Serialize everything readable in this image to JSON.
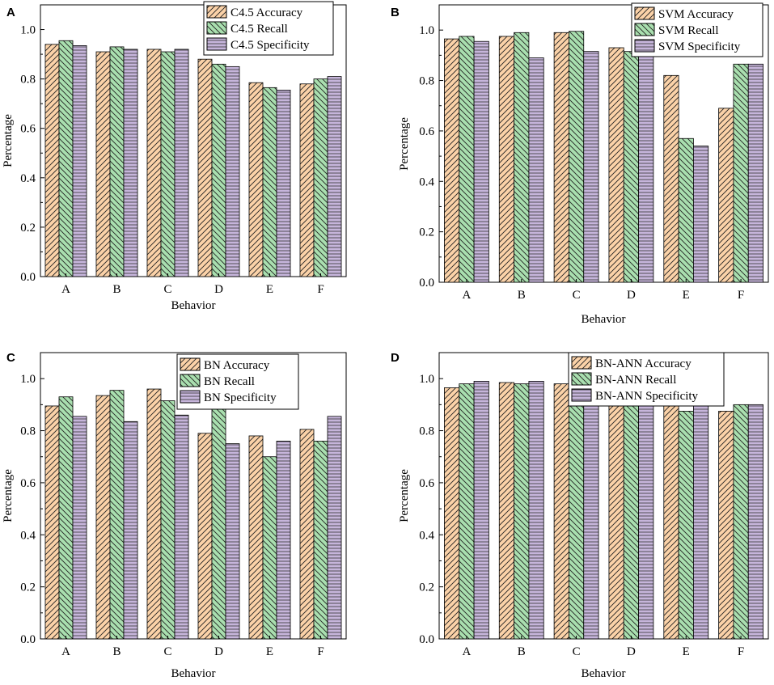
{
  "figure": {
    "background": "#ffffff"
  },
  "series_styles": [
    {
      "key": "accuracy",
      "fill": "#fbd2a8",
      "pattern": "diag-right"
    },
    {
      "key": "recall",
      "fill": "#a9dfaf",
      "pattern": "diag-left"
    },
    {
      "key": "specificity",
      "fill": "#c6b5db",
      "pattern": "horizontal"
    }
  ],
  "chart_data": [
    {
      "panel": "A",
      "type": "bar",
      "xlabel": "Behavior",
      "ylabel": "Percentage",
      "categories": [
        "A",
        "B",
        "C",
        "D",
        "E",
        "F"
      ],
      "ylim": [
        0,
        1.1
      ],
      "yticks": [
        0.0,
        0.2,
        0.4,
        0.6,
        0.8,
        1.0
      ],
      "ytick_labels": [
        "0.0",
        "0.2",
        "0.4",
        "0.6",
        "0.8",
        "1.0"
      ],
      "series": [
        {
          "name": "C4.5 Accuracy",
          "values": [
            0.94,
            0.91,
            0.92,
            0.88,
            0.785,
            0.78
          ]
        },
        {
          "name": "C4.5 Recall",
          "values": [
            0.955,
            0.93,
            0.91,
            0.86,
            0.765,
            0.8
          ]
        },
        {
          "name": "C4.5 Specificity",
          "values": [
            0.935,
            0.92,
            0.92,
            0.85,
            0.755,
            0.81
          ]
        }
      ]
    },
    {
      "panel": "B",
      "type": "bar",
      "xlabel": "Behavior",
      "ylabel": "Percentage",
      "categories": [
        "A",
        "B",
        "C",
        "D",
        "E",
        "F"
      ],
      "ylim": [
        0,
        1.1
      ],
      "yticks": [
        0.0,
        0.2,
        0.4,
        0.6,
        0.8,
        1.0
      ],
      "ytick_labels": [
        "0.0",
        "0.2",
        "0.4",
        "0.6",
        "0.8",
        "1.0"
      ],
      "series": [
        {
          "name": "SVM Accuracy",
          "values": [
            0.965,
            0.975,
            0.99,
            0.93,
            0.82,
            0.69
          ]
        },
        {
          "name": "SVM Recall",
          "values": [
            0.975,
            0.99,
            0.995,
            0.915,
            0.57,
            0.865
          ]
        },
        {
          "name": "SVM Specificity",
          "values": [
            0.955,
            0.89,
            0.915,
            0.925,
            0.54,
            0.865
          ]
        }
      ]
    },
    {
      "panel": "C",
      "type": "bar",
      "xlabel": "Behavior",
      "ylabel": "Percentage",
      "categories": [
        "A",
        "B",
        "C",
        "D",
        "E",
        "F"
      ],
      "ylim": [
        0,
        1.1
      ],
      "yticks": [
        0.0,
        0.2,
        0.4,
        0.6,
        0.8,
        1.0
      ],
      "ytick_labels": [
        "0.0",
        "0.2",
        "0.4",
        "0.6",
        "0.8",
        "1.0"
      ],
      "series": [
        {
          "name": "BN Accuracy",
          "values": [
            0.895,
            0.935,
            0.96,
            0.79,
            0.78,
            0.805
          ]
        },
        {
          "name": "BN Recall",
          "values": [
            0.93,
            0.955,
            0.915,
            0.945,
            0.7,
            0.76
          ]
        },
        {
          "name": "BN Specificity",
          "values": [
            0.855,
            0.835,
            0.86,
            0.75,
            0.76,
            0.855
          ]
        }
      ]
    },
    {
      "panel": "D",
      "type": "bar",
      "xlabel": "Behavior",
      "ylabel": "Percentage",
      "categories": [
        "A",
        "B",
        "C",
        "D",
        "E",
        "F"
      ],
      "ylim": [
        0,
        1.1
      ],
      "yticks": [
        0.0,
        0.2,
        0.4,
        0.6,
        0.8,
        1.0
      ],
      "ytick_labels": [
        "0.0",
        "0.2",
        "0.4",
        "0.6",
        "0.8",
        "1.0"
      ],
      "series": [
        {
          "name": "BN-ANN Accuracy",
          "values": [
            0.965,
            0.985,
            0.98,
            0.935,
            0.905,
            0.875
          ]
        },
        {
          "name": "BN-ANN Recall",
          "values": [
            0.98,
            0.98,
            0.985,
            0.92,
            0.875,
            0.9
          ]
        },
        {
          "name": "BN-ANN Specificity",
          "values": [
            0.99,
            0.99,
            0.99,
            0.945,
            0.895,
            0.9
          ]
        }
      ]
    }
  ]
}
